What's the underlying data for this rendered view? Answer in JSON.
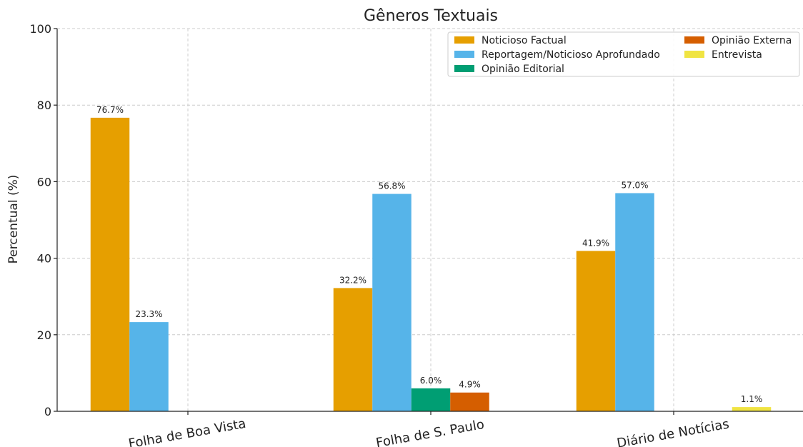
{
  "chart_data": {
    "type": "bar",
    "title": "Gêneros Textuais",
    "xlabel": "",
    "ylabel": "Percentual (%)",
    "ylim": [
      0,
      100
    ],
    "yticks": [
      0,
      20,
      40,
      60,
      80,
      100
    ],
    "categories": [
      "Folha de Boa Vista",
      "Folha de S. Paulo",
      "Diário de Notícias"
    ],
    "grid": true,
    "legend_position": "top-right",
    "series": [
      {
        "name": "Noticioso Factual",
        "color": "#E69F00",
        "values": [
          76.7,
          32.2,
          41.9
        ],
        "labels": [
          "76.7%",
          "32.2%",
          "41.9%"
        ]
      },
      {
        "name": "Reportagem/Noticioso Aprofundado",
        "color": "#56B4E9",
        "values": [
          23.3,
          56.8,
          57.0
        ],
        "labels": [
          "23.3%",
          "56.8%",
          "57.0%"
        ]
      },
      {
        "name": "Opinião Editorial",
        "color": "#009E73",
        "values": [
          0,
          6.0,
          0
        ],
        "labels": [
          "",
          "6.0%",
          ""
        ]
      },
      {
        "name": "Opinião Externa",
        "color": "#D55E00",
        "values": [
          0,
          4.9,
          0
        ],
        "labels": [
          "",
          "4.9%",
          ""
        ]
      },
      {
        "name": "Entrevista",
        "color": "#F0E442",
        "values": [
          0,
          0,
          1.1
        ],
        "labels": [
          "",
          "",
          "1.1%"
        ]
      }
    ]
  }
}
